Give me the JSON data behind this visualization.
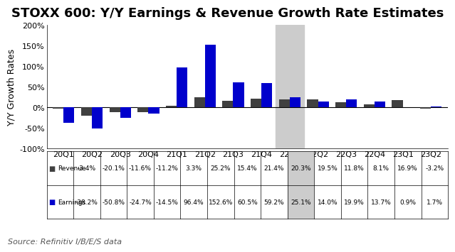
{
  "title": "STOXX 600: Y/Y Earnings & Revenue Growth Rate Estimates",
  "ylabel": "Y/Y Growth Rates",
  "source": "Source: Refinitiv I/B/E/S data",
  "categories": [
    "20Q1",
    "20Q2",
    "20Q3",
    "20Q4",
    "21Q1",
    "21Q2",
    "21Q3",
    "21Q4",
    "22Q1",
    "22Q2",
    "22Q3",
    "22Q4",
    "23Q1",
    "23Q2"
  ],
  "revenue": [
    -3.4,
    -20.1,
    -11.6,
    -11.2,
    3.3,
    25.2,
    15.4,
    21.4,
    20.3,
    19.5,
    11.8,
    8.1,
    16.9,
    -3.2
  ],
  "earnings": [
    -38.2,
    -50.8,
    -24.7,
    -14.5,
    96.4,
    152.6,
    60.5,
    59.2,
    25.1,
    14.0,
    19.9,
    13.7,
    0.9,
    1.7
  ],
  "revenue_labels": [
    "-3.4%",
    "-20.1%",
    "-11.6%",
    "-11.2%",
    "3.3%",
    "25.2%",
    "15.4%",
    "21.4%",
    "20.3%",
    "19.5%",
    "11.8%",
    "8.1%",
    "16.9%",
    "-3.2%"
  ],
  "earnings_labels": [
    "-38.2%",
    "-50.8%",
    "-24.7%",
    "-14.5%",
    "96.4%",
    "152.6%",
    "60.5%",
    "59.2%",
    "25.1%",
    "14.0%",
    "19.9%",
    "13.7%",
    "0.9%",
    "1.7%"
  ],
  "revenue_color": "#404040",
  "earnings_color": "#0000CC",
  "highlight_index": 8,
  "highlight_color": "#CCCCCC",
  "ylim": [
    -100,
    200
  ],
  "yticks": [
    -100,
    -50,
    0,
    50,
    100,
    150,
    200
  ],
  "background_color": "#FFFFFF",
  "title_fontsize": 13,
  "axis_fontsize": 8,
  "table_fontsize": 6.5,
  "ylabel_fontsize": 9
}
